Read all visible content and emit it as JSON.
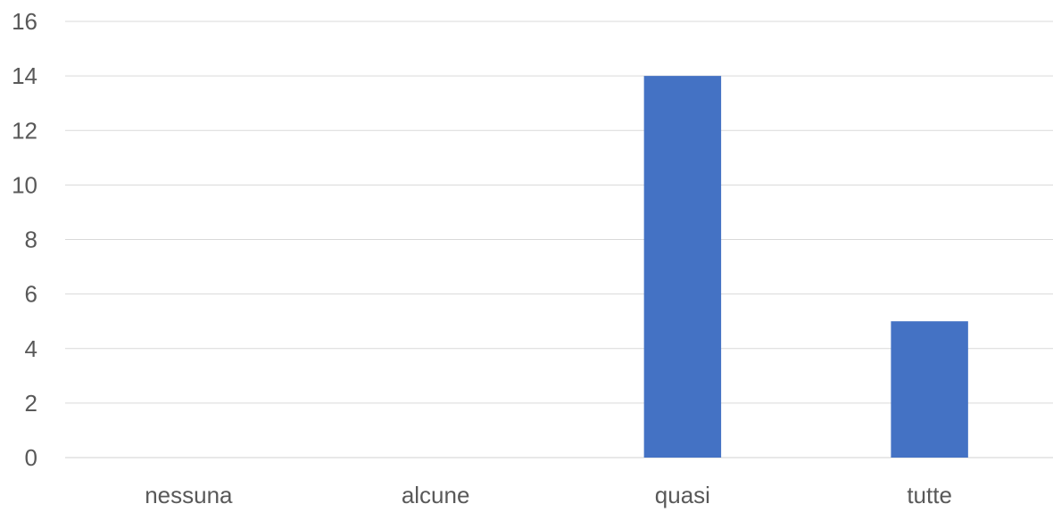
{
  "chart_data": {
    "type": "bar",
    "categories": [
      "nessuna",
      "alcune",
      "quasi",
      "tutte"
    ],
    "values": [
      0,
      0,
      14,
      5
    ],
    "ylim": [
      0,
      16
    ],
    "yticks": [
      0,
      2,
      4,
      6,
      8,
      10,
      12,
      14,
      16
    ],
    "grid": true,
    "legend": "none",
    "colors": {
      "bar": "#4472c4",
      "grid": "#d9d9d9",
      "text": "#595959"
    }
  }
}
